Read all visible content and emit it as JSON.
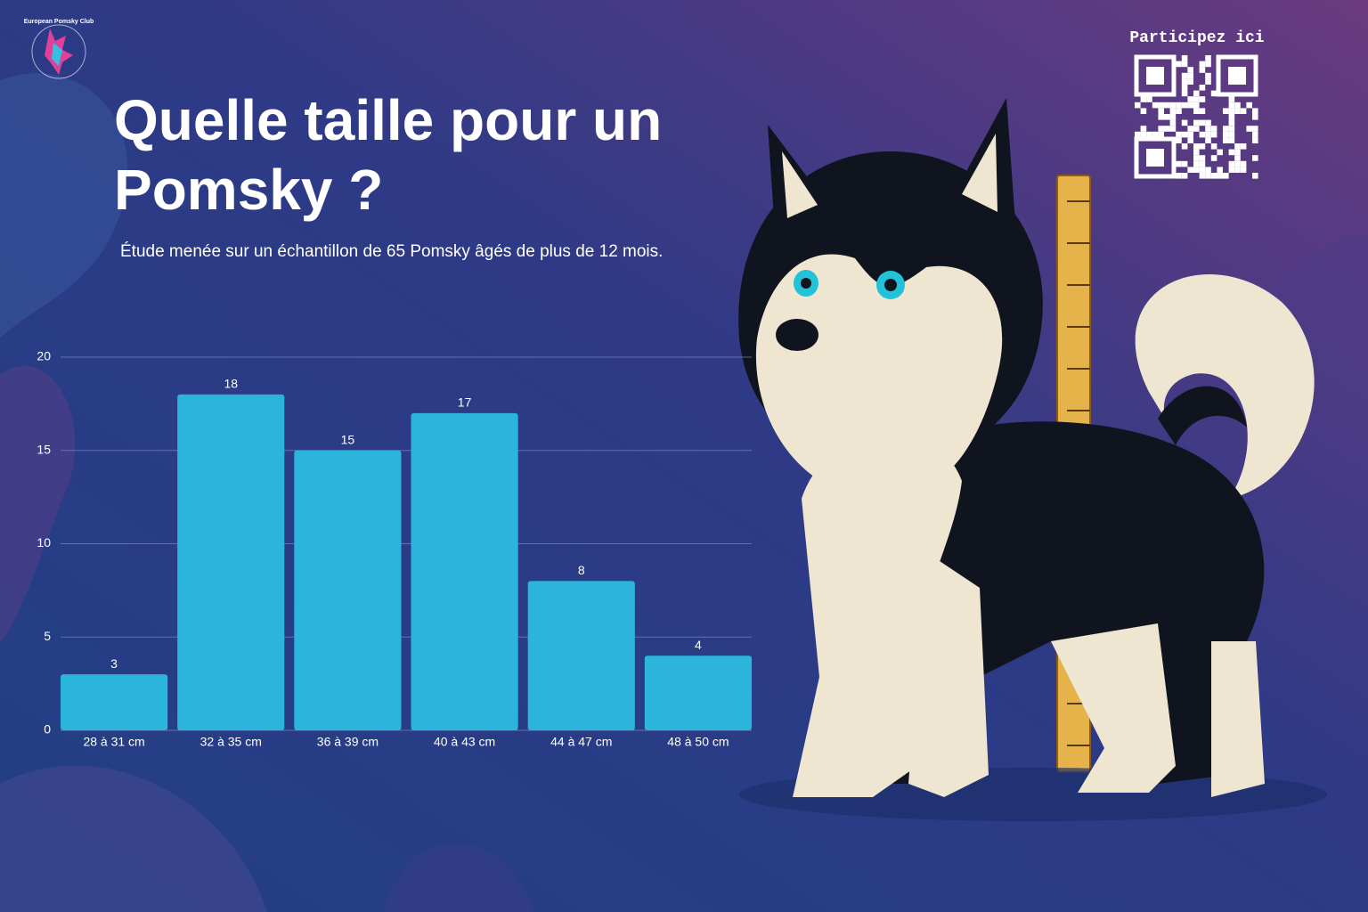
{
  "header": {
    "logo_text": "European Pomsky Club",
    "qr_label": "Participez ici"
  },
  "chart_data": {
    "type": "bar",
    "title": "Quelle taille pour un Pomsky ?",
    "subtitle": "Étude menée sur un échantillon de 65 Pomsky âgés de plus de 12 mois.",
    "categories": [
      "28 à 31 cm",
      "32 à 35 cm",
      "36 à 39 cm",
      "40 à 43 cm",
      "44 à 47 cm",
      "48 à 50 cm"
    ],
    "values": [
      3,
      18,
      15,
      17,
      8,
      4
    ],
    "color": "#2bb5dc",
    "ylim": [
      0,
      20
    ],
    "yticks": [
      0,
      5,
      10,
      15,
      20
    ],
    "grid": true
  }
}
